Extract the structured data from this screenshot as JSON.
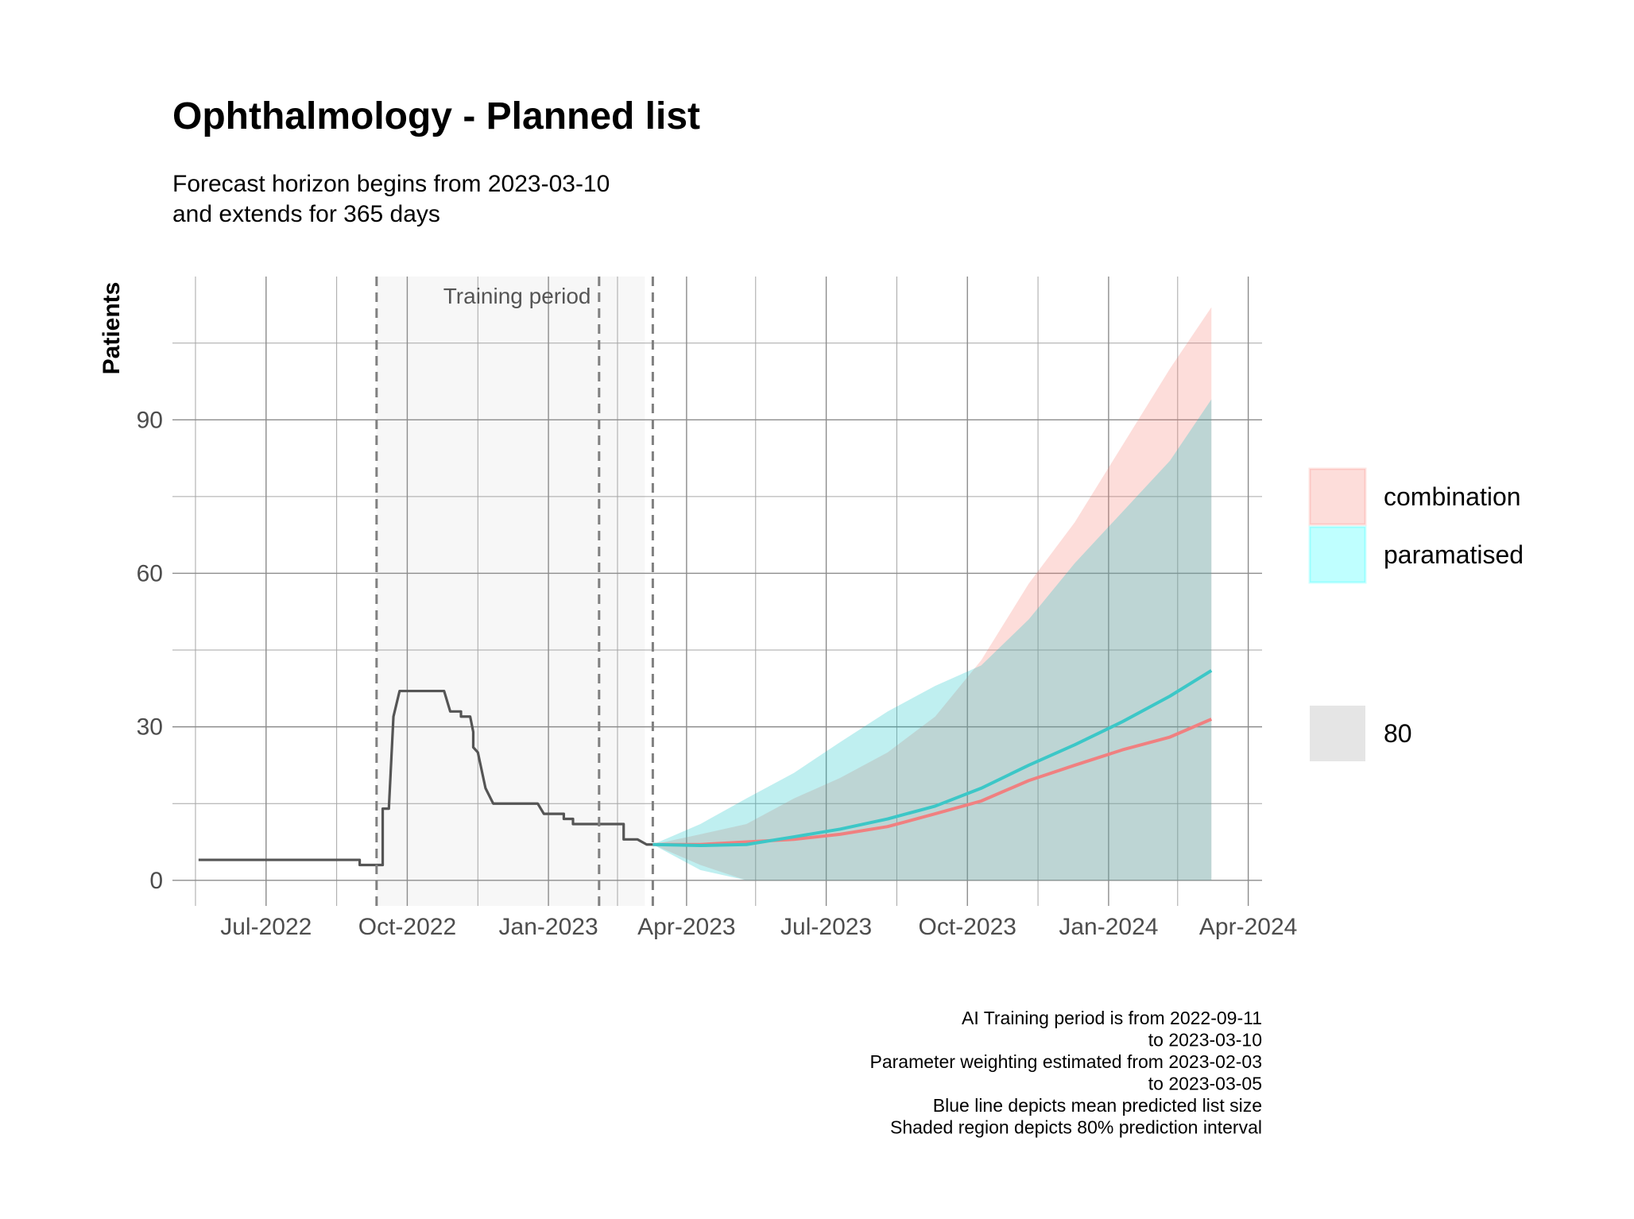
{
  "chart_data": {
    "type": "line",
    "title": "Ophthalmology - Planned list",
    "subtitle_lines": [
      "Forecast horizon begins from 2023-03-10",
      "and extends for 365 days"
    ],
    "ylabel": "Patients",
    "xlabel": "",
    "x_axis": {
      "type": "date",
      "range": [
        "2022-05-01",
        "2024-04-10"
      ],
      "ticks": [
        {
          "date": "2022-07-01",
          "label": "Jul-2022"
        },
        {
          "date": "2022-10-01",
          "label": "Oct-2022"
        },
        {
          "date": "2023-01-01",
          "label": "Jan-2023"
        },
        {
          "date": "2023-04-01",
          "label": "Apr-2023"
        },
        {
          "date": "2023-07-01",
          "label": "Jul-2023"
        },
        {
          "date": "2023-10-01",
          "label": "Oct-2023"
        },
        {
          "date": "2024-01-01",
          "label": "Jan-2024"
        },
        {
          "date": "2024-04-01",
          "label": "Apr-2024"
        }
      ],
      "minor_ticks": [
        "2022-05-16",
        "2022-08-16",
        "2022-11-16",
        "2023-02-15",
        "2023-05-16",
        "2023-08-16",
        "2023-11-16",
        "2024-02-15"
      ]
    },
    "y_axis": {
      "range": [
        -5,
        118
      ],
      "ticks": [
        0,
        30,
        60,
        90
      ],
      "minor_ticks": [
        15,
        45,
        75,
        105
      ]
    },
    "grid": true,
    "training_period": {
      "label": "Training period",
      "start": "2022-09-11",
      "end": "2023-03-10"
    },
    "vlines": [
      "2022-09-11",
      "2023-02-03",
      "2023-03-10"
    ],
    "observed": {
      "color": "#555555",
      "points": [
        [
          "2022-05-18",
          4
        ],
        [
          "2022-08-31",
          4
        ],
        [
          "2022-08-31",
          3
        ],
        [
          "2022-09-15",
          3
        ],
        [
          "2022-09-15",
          14
        ],
        [
          "2022-09-19",
          14
        ],
        [
          "2022-09-22",
          32
        ],
        [
          "2022-09-26",
          37
        ],
        [
          "2022-10-25",
          37
        ],
        [
          "2022-10-29",
          33
        ],
        [
          "2022-11-05",
          33
        ],
        [
          "2022-11-05",
          32
        ],
        [
          "2022-11-11",
          32
        ],
        [
          "2022-11-13",
          29
        ],
        [
          "2022-11-13",
          26
        ],
        [
          "2022-11-16",
          25
        ],
        [
          "2022-11-21",
          18
        ],
        [
          "2022-11-26",
          15
        ],
        [
          "2022-12-25",
          15
        ],
        [
          "2022-12-29",
          13
        ],
        [
          "2023-01-11",
          13
        ],
        [
          "2023-01-11",
          12
        ],
        [
          "2023-01-17",
          12
        ],
        [
          "2023-01-17",
          11
        ],
        [
          "2023-02-19",
          11
        ],
        [
          "2023-02-19",
          8
        ],
        [
          "2023-02-28",
          8
        ],
        [
          "2023-03-06",
          7
        ],
        [
          "2023-03-10",
          7
        ]
      ]
    },
    "series": [
      {
        "name": "combination",
        "color": "#f08080",
        "fill": "#f8766d",
        "x": [
          "2023-03-10",
          "2023-04-10",
          "2023-05-10",
          "2023-06-10",
          "2023-07-10",
          "2023-08-10",
          "2023-09-10",
          "2023-10-10",
          "2023-11-10",
          "2023-12-10",
          "2024-01-10",
          "2024-02-10",
          "2024-03-08"
        ],
        "mean": [
          7,
          7,
          7.5,
          8,
          9,
          10.5,
          13,
          15.5,
          19.5,
          22.5,
          25.5,
          28,
          31.5
        ],
        "lower": [
          7,
          3,
          0,
          0,
          0,
          0,
          0,
          0,
          0,
          0,
          0,
          0,
          0
        ],
        "upper": [
          7,
          9,
          11,
          16,
          20,
          25,
          32,
          43,
          58,
          70,
          85,
          100,
          112
        ]
      },
      {
        "name": "paramatised",
        "color": "#3cc7c7",
        "fill": "#00bfc4",
        "x": [
          "2023-03-10",
          "2023-04-10",
          "2023-05-10",
          "2023-06-10",
          "2023-07-10",
          "2023-08-10",
          "2023-09-10",
          "2023-10-10",
          "2023-11-10",
          "2023-12-10",
          "2024-01-10",
          "2024-02-10",
          "2024-03-08"
        ],
        "mean": [
          7,
          6.8,
          7,
          8.5,
          10,
          12,
          14.5,
          18,
          22.5,
          26.5,
          31,
          36,
          41
        ],
        "lower": [
          7,
          2,
          0,
          0,
          0,
          0,
          0,
          0,
          0,
          0,
          0,
          0,
          0
        ],
        "upper": [
          7,
          11,
          16,
          21,
          27,
          33,
          38,
          42,
          51,
          62,
          72,
          82,
          94
        ]
      }
    ],
    "legend": {
      "placement": "right",
      "entries": [
        {
          "label": "combination",
          "color": "#f8766d"
        },
        {
          "label": "paramatised",
          "color": "#00ffff"
        }
      ],
      "interval_label": "80"
    },
    "caption_lines": [
      "AI Training period is from 2022-09-11",
      "to 2023-03-10",
      "Parameter weighting estimated from 2023-02-03",
      "to 2023-03-05",
      "Blue line depicts mean predicted list size",
      "Shaded region depicts 80% prediction interval"
    ]
  }
}
